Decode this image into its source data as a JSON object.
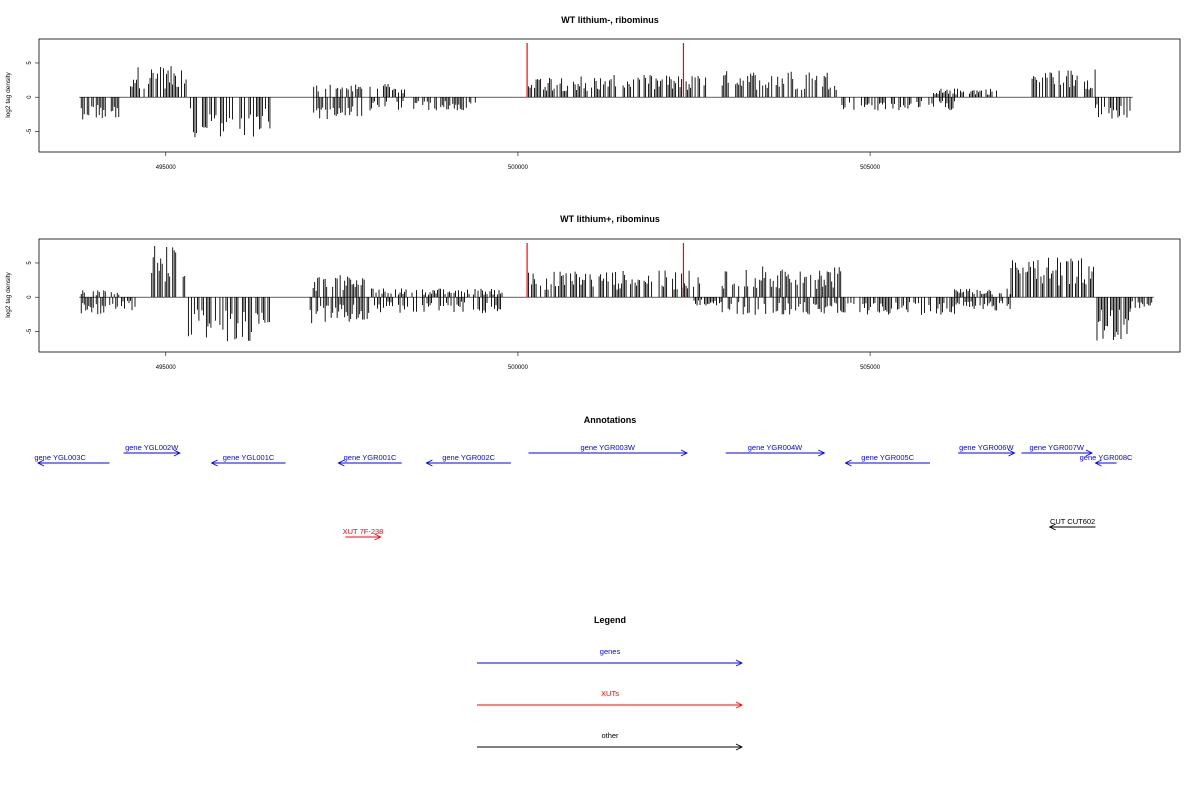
{
  "chart_data": [
    {
      "type": "bar",
      "title": "WT lithium-, ribominus",
      "ylabel": "log2 tag density",
      "xlim": [
        493200,
        509400
      ],
      "ylim": [
        -8,
        8.5
      ],
      "xticks": [
        495000,
        500000,
        505000
      ],
      "yticks": [
        -5,
        0,
        5
      ],
      "highlight_positions": [
        500130,
        502350
      ],
      "highlight_color": "#ff0000",
      "bar_color": "#000000",
      "segments": [
        {
          "start": 493800,
          "end": 494350,
          "strand": "-",
          "height": 2.5
        },
        {
          "start": 494500,
          "end": 495300,
          "strand": "+",
          "height": 3.5
        },
        {
          "start": 495350,
          "end": 496500,
          "strand": "-",
          "height": 4.5
        },
        {
          "start": 497100,
          "end": 497800,
          "strand": "-",
          "height": 2.5
        },
        {
          "start": 497100,
          "end": 497800,
          "strand": "+",
          "height": 1.5
        },
        {
          "start": 497900,
          "end": 498400,
          "strand": "+",
          "height": 1.5
        },
        {
          "start": 497900,
          "end": 498400,
          "strand": "-",
          "height": 1.5
        },
        {
          "start": 498500,
          "end": 499400,
          "strand": "-",
          "height": 1.5
        },
        {
          "start": 500130,
          "end": 502700,
          "strand": "+",
          "height": 2.5
        },
        {
          "start": 502900,
          "end": 504600,
          "strand": "+",
          "height": 3.0
        },
        {
          "start": 504600,
          "end": 506200,
          "strand": "-",
          "height": 1.5
        },
        {
          "start": 505900,
          "end": 506800,
          "strand": "+",
          "height": 1.0
        },
        {
          "start": 507300,
          "end": 508200,
          "strand": "+",
          "height": 3.2
        },
        {
          "start": 508200,
          "end": 508700,
          "strand": "-",
          "height": 2.5
        }
      ]
    },
    {
      "type": "bar",
      "title": "WT lithium+, ribominus",
      "ylabel": "log2 tag density",
      "xlim": [
        493200,
        509400
      ],
      "ylim": [
        -8,
        8.5
      ],
      "xticks": [
        495000,
        500000,
        505000
      ],
      "yticks": [
        -5,
        0,
        5
      ],
      "highlight_positions": [
        500130,
        502350
      ],
      "highlight_color": "#ff0000",
      "bar_color": "#000000",
      "segments": [
        {
          "start": 493800,
          "end": 494350,
          "strand": "-",
          "height": 2.0
        },
        {
          "start": 493800,
          "end": 494350,
          "strand": "+",
          "height": 0.8
        },
        {
          "start": 494350,
          "end": 494600,
          "strand": "-",
          "height": 1.5
        },
        {
          "start": 494800,
          "end": 495300,
          "strand": "+",
          "height": 6.0
        },
        {
          "start": 495300,
          "end": 496500,
          "strand": "-",
          "height": 5.0
        },
        {
          "start": 497050,
          "end": 497900,
          "strand": "-",
          "height": 3.0
        },
        {
          "start": 497050,
          "end": 497900,
          "strand": "+",
          "height": 2.5
        },
        {
          "start": 497900,
          "end": 499800,
          "strand": "-",
          "height": 1.8
        },
        {
          "start": 497900,
          "end": 499800,
          "strand": "+",
          "height": 1.0
        },
        {
          "start": 500130,
          "end": 502600,
          "strand": "+",
          "height": 3.0
        },
        {
          "start": 502500,
          "end": 502900,
          "strand": "-",
          "height": 1.0
        },
        {
          "start": 502900,
          "end": 504600,
          "strand": "+",
          "height": 3.5
        },
        {
          "start": 502900,
          "end": 504600,
          "strand": "-",
          "height": 2.0
        },
        {
          "start": 504600,
          "end": 506200,
          "strand": "-",
          "height": 2.0
        },
        {
          "start": 506200,
          "end": 507000,
          "strand": "-",
          "height": 1.5
        },
        {
          "start": 506200,
          "end": 507000,
          "strand": "+",
          "height": 1.0
        },
        {
          "start": 507000,
          "end": 508200,
          "strand": "+",
          "height": 4.5
        },
        {
          "start": 508200,
          "end": 508700,
          "strand": "-",
          "height": 5.0
        },
        {
          "start": 508700,
          "end": 509000,
          "strand": "-",
          "height": 1.5
        }
      ]
    }
  ],
  "annotations": {
    "title": "Annotations",
    "features": [
      {
        "label": "gene YGL003C",
        "start": 492800,
        "end": 494200,
        "strand": "-",
        "category": "gene",
        "row": 1
      },
      {
        "label": "gene YGL002W",
        "start": 494400,
        "end": 495200,
        "strand": "+",
        "category": "gene",
        "row": 0
      },
      {
        "label": "gene YGL001C",
        "start": 495650,
        "end": 496700,
        "strand": "-",
        "category": "gene",
        "row": 1
      },
      {
        "label": "gene YGR001C",
        "start": 497450,
        "end": 498350,
        "strand": "-",
        "category": "gene",
        "row": 1
      },
      {
        "label": "gene YGR002C",
        "start": 498700,
        "end": 499900,
        "strand": "-",
        "category": "gene",
        "row": 1
      },
      {
        "label": "gene YGR003W",
        "start": 500150,
        "end": 502400,
        "strand": "+",
        "category": "gene",
        "row": 0
      },
      {
        "label": "gene YGR004W",
        "start": 502950,
        "end": 504350,
        "strand": "+",
        "category": "gene",
        "row": 0
      },
      {
        "label": "gene YGR005C",
        "start": 504650,
        "end": 505850,
        "strand": "-",
        "category": "gene",
        "row": 1
      },
      {
        "label": "gene YGR006W",
        "start": 506250,
        "end": 507050,
        "strand": "+",
        "category": "gene",
        "row": 0
      },
      {
        "label": "gene YGR007W",
        "start": 507150,
        "end": 508150,
        "strand": "+",
        "category": "gene",
        "row": 0
      },
      {
        "label": "gene YGR008C",
        "start": 508200,
        "end": 508500,
        "strand": "-",
        "category": "gene",
        "row": 1
      },
      {
        "label": "XUT 7F-238",
        "start": 497550,
        "end": 498050,
        "strand": "+",
        "category": "XUTs",
        "row": 3
      },
      {
        "label": "CUT CUT602",
        "start": 507550,
        "end": 508200,
        "strand": "-",
        "category": "other",
        "row": 2
      }
    ]
  },
  "legend": {
    "title": "Legend",
    "items": [
      {
        "label": "genes",
        "color": "#0000ff"
      },
      {
        "label": "XUTs",
        "color": "#ff0000"
      },
      {
        "label": "other",
        "color": "#000000"
      }
    ]
  },
  "colors": {
    "gene": "#0000ff",
    "XUTs": "#ff0000",
    "other": "#000000"
  }
}
